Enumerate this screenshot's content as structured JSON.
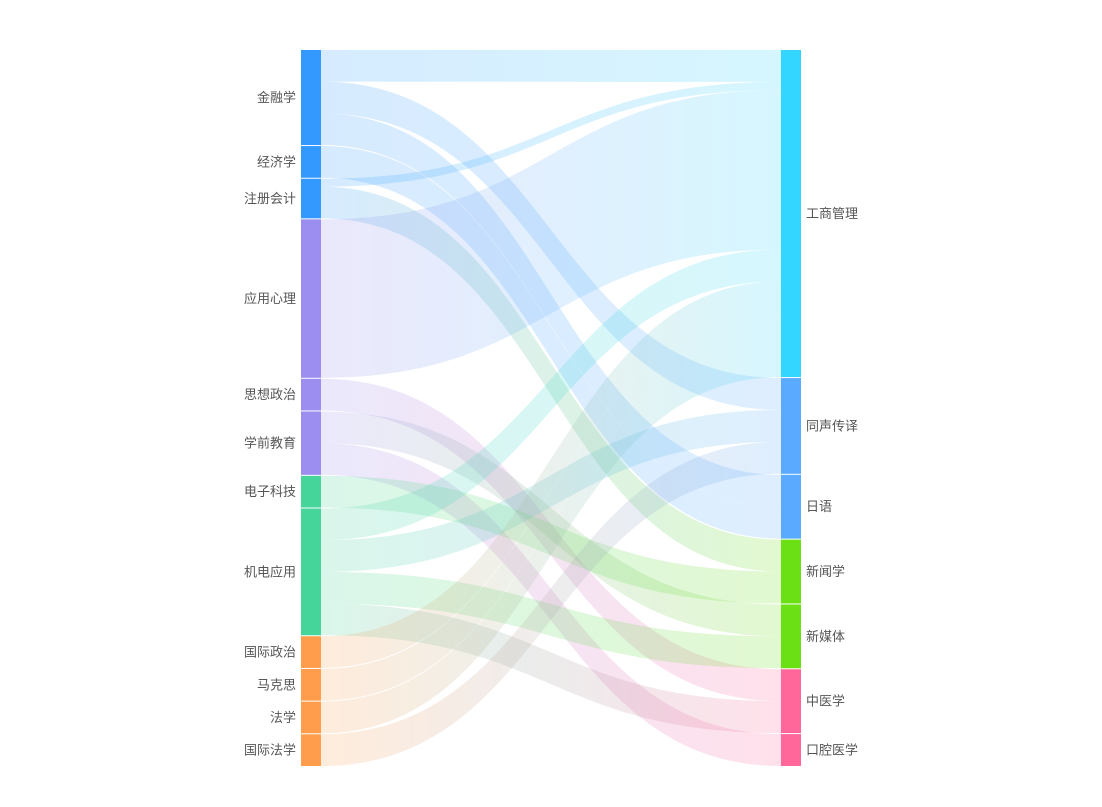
{
  "chart_data": {
    "type": "sankey",
    "title": "",
    "nodes": [
      {
        "name": "金融学",
        "side": "left",
        "color": "#3399ff"
      },
      {
        "name": "经济学",
        "side": "left",
        "color": "#3399ff"
      },
      {
        "name": "注册会计",
        "side": "left",
        "color": "#3399ff"
      },
      {
        "name": "应用心理",
        "side": "left",
        "color": "#9b8ef0"
      },
      {
        "name": "思想政治",
        "side": "left",
        "color": "#9b8ef0"
      },
      {
        "name": "学前教育",
        "side": "left",
        "color": "#9b8ef0"
      },
      {
        "name": "电子科技",
        "side": "left",
        "color": "#45d49a"
      },
      {
        "name": "机电应用",
        "side": "left",
        "color": "#45d49a"
      },
      {
        "name": "国际政治",
        "side": "left",
        "color": "#ff9d4d"
      },
      {
        "name": "马克思",
        "side": "left",
        "color": "#ff9d4d"
      },
      {
        "name": "法学",
        "side": "left",
        "color": "#ff9d4d"
      },
      {
        "name": "国际法学",
        "side": "left",
        "color": "#ff9d4d"
      },
      {
        "name": "工商管理",
        "side": "right",
        "color": "#33d6ff"
      },
      {
        "name": "同声传译",
        "side": "right",
        "color": "#5aabff"
      },
      {
        "name": "日语",
        "side": "right",
        "color": "#5aabff"
      },
      {
        "name": "新闻学",
        "side": "right",
        "color": "#6be015"
      },
      {
        "name": "新媒体",
        "side": "right",
        "color": "#6be015"
      },
      {
        "name": "中医学",
        "side": "right",
        "color": "#ff6699"
      },
      {
        "name": "口腔医学",
        "side": "right",
        "color": "#ff6699"
      }
    ],
    "links": [
      {
        "source": "金融学",
        "target": "工商管理",
        "value": 1
      },
      {
        "source": "金融学",
        "target": "同声传译",
        "value": 1
      },
      {
        "source": "金融学",
        "target": "日语",
        "value": 1
      },
      {
        "source": "经济学",
        "target": "日语",
        "value": 1
      },
      {
        "source": "注册会计",
        "target": "工商管理",
        "value": 0
      },
      {
        "source": "注册会计",
        "target": "新闻学",
        "value": 1
      },
      {
        "source": "应用心理",
        "target": "工商管理",
        "value": 5
      },
      {
        "source": "思想政治",
        "target": "中医学",
        "value": 1
      },
      {
        "source": "学前教育",
        "target": "新媒体",
        "value": 1
      },
      {
        "source": "学前教育",
        "target": "口腔医学",
        "value": 1
      },
      {
        "source": "电子科技",
        "target": "新闻学",
        "value": 1
      },
      {
        "source": "机电应用",
        "target": "工商管理",
        "value": 1
      },
      {
        "source": "机电应用",
        "target": "同声传译",
        "value": 1
      },
      {
        "source": "机电应用",
        "target": "新媒体",
        "value": 1
      },
      {
        "source": "机电应用",
        "target": "中医学",
        "value": 1
      },
      {
        "source": "国际政治",
        "target": "工商管理",
        "value": 1
      },
      {
        "source": "马克思",
        "target": "工商管理",
        "value": 1
      },
      {
        "source": "法学",
        "target": "工商管理",
        "value": 1
      },
      {
        "source": "国际法学",
        "target": "同声传译",
        "value": 1
      }
    ],
    "legend": "none",
    "grid": false
  }
}
